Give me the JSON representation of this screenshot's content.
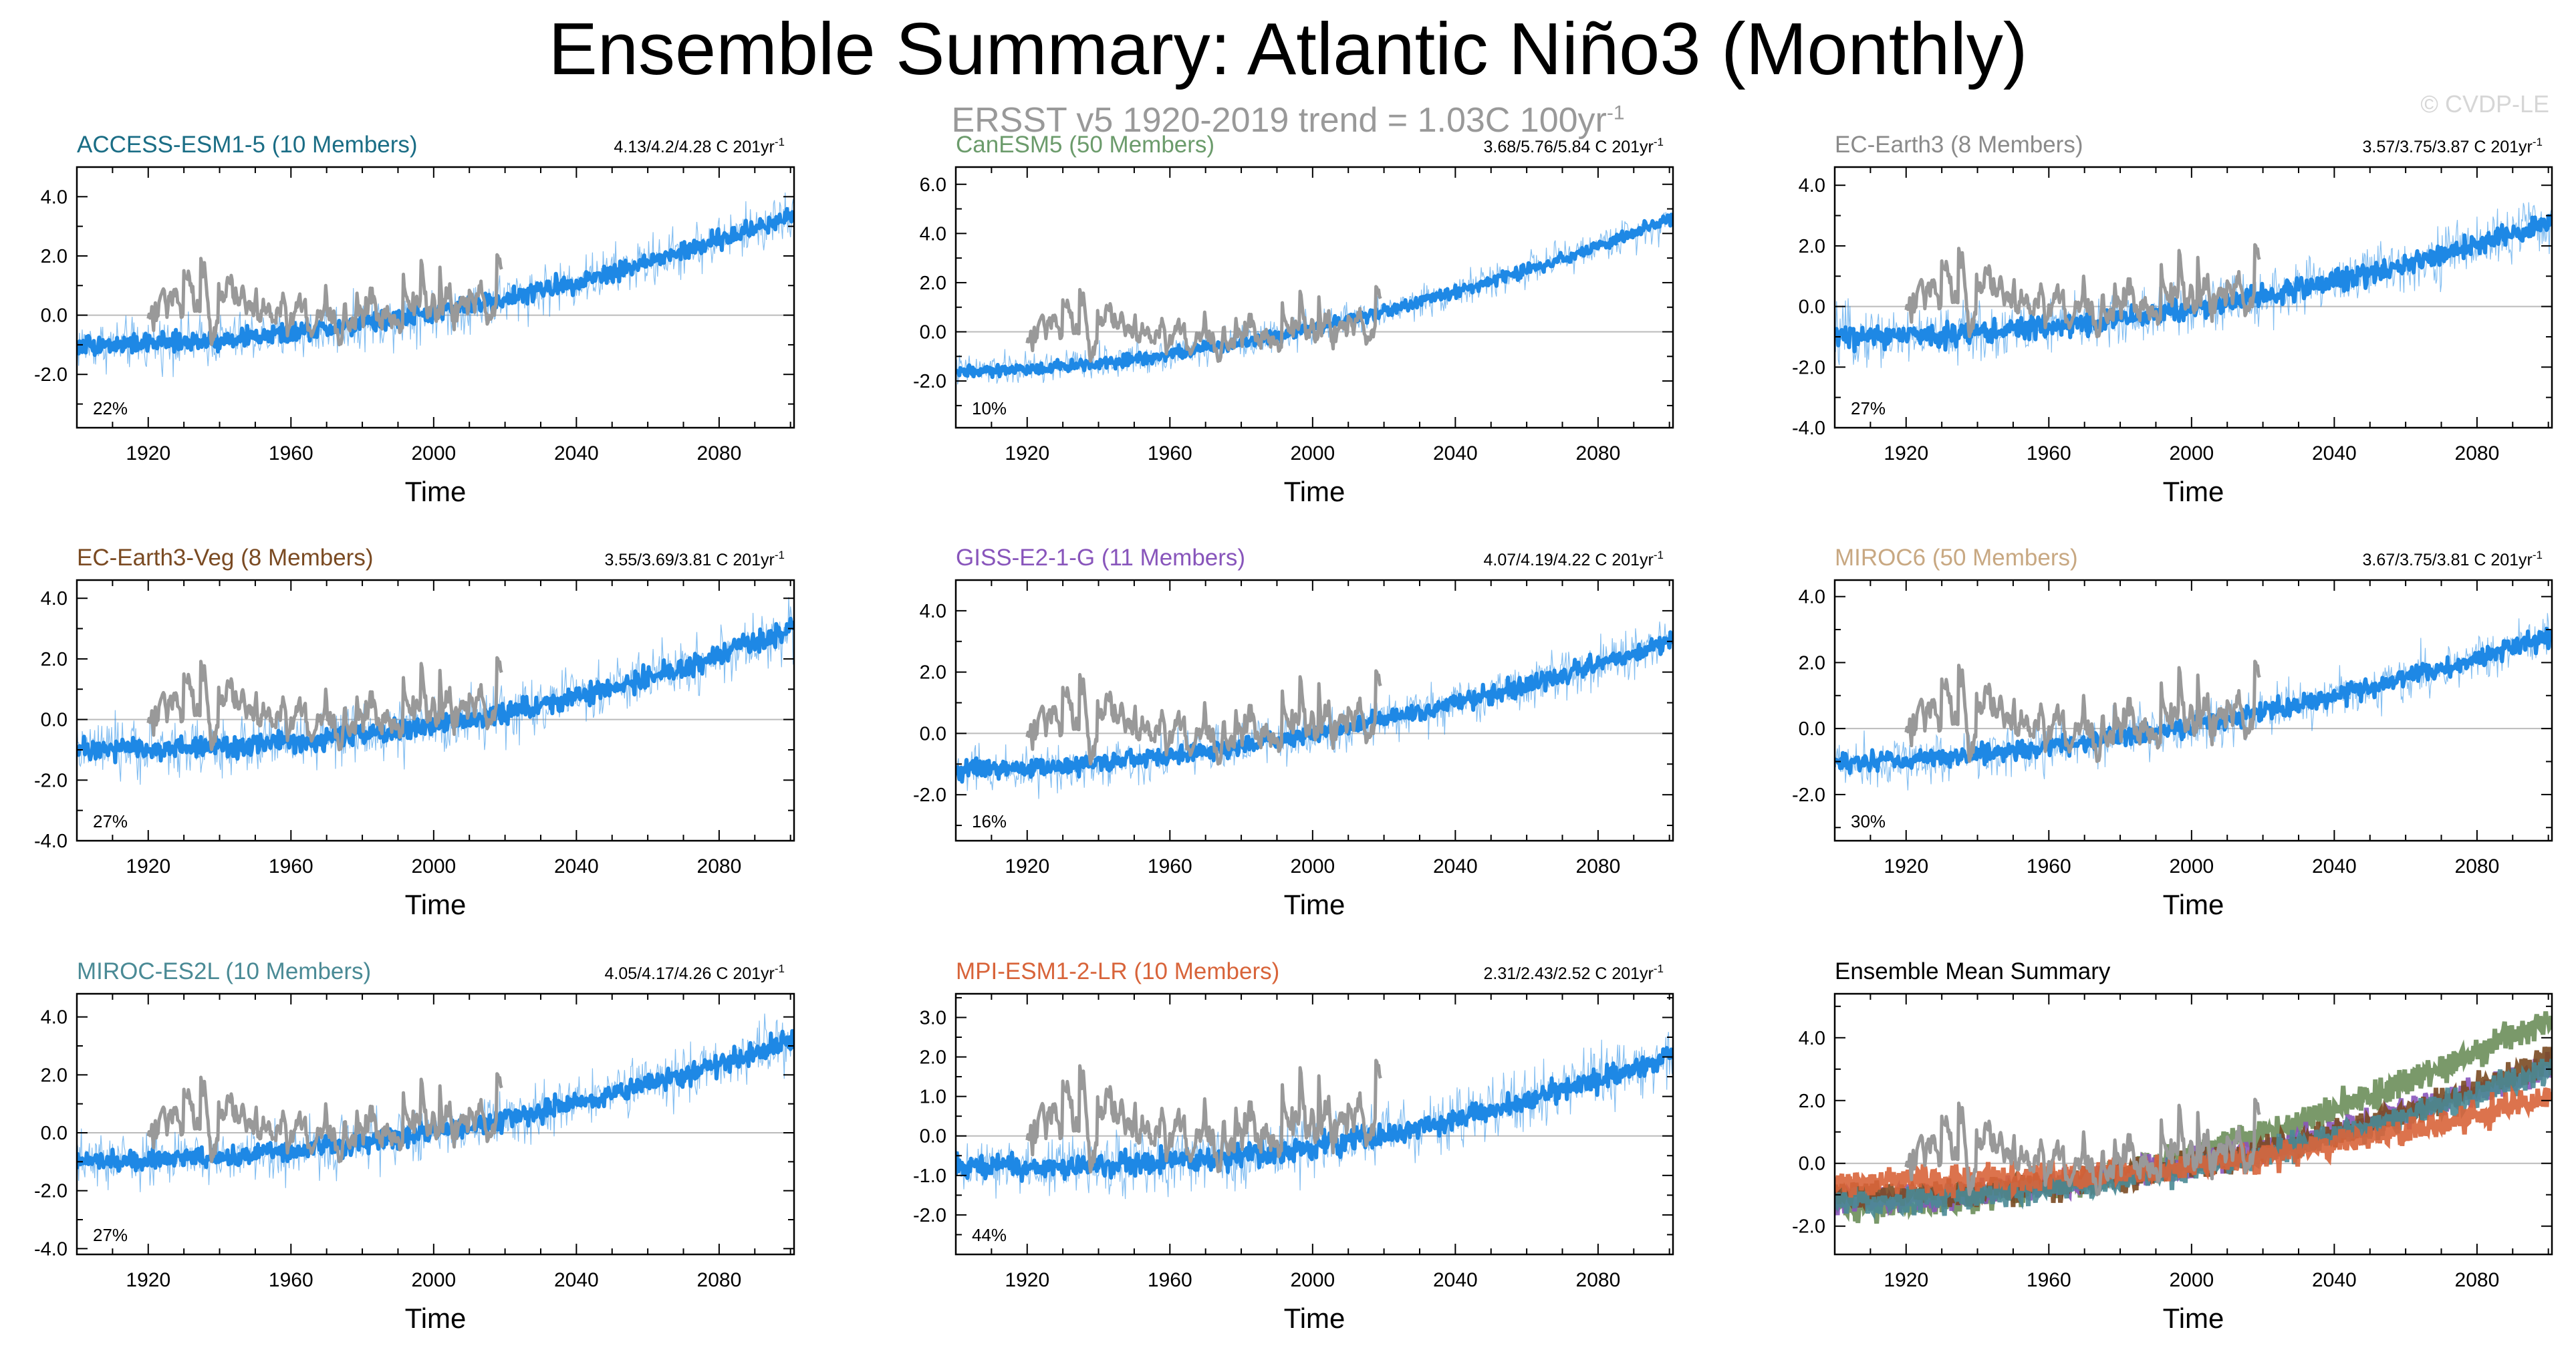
{
  "title": "Ensemble Summary: Atlantic Niño3 (Monthly)",
  "subtitle": {
    "text": "ERSST v5 1920-2019 trend = 1.03C 100yr",
    "sup": "-1"
  },
  "watermark": "© CVDP-LE",
  "colors": {
    "model": "#1e88e5",
    "obs": "#999999",
    "zero_line": "#bbbbbb"
  },
  "chart_data": [
    {
      "type": "line",
      "title": "ACCESS-ESM1-5 (10 Members)",
      "title_color": "#1a6d85",
      "trend": "4.13/4.2/4.28 C 201yr",
      "percent": "22%",
      "xlabel": "Time",
      "xlim": [
        1900,
        2101
      ],
      "xticks": [
        1920,
        1960,
        2000,
        2040,
        2080
      ],
      "ylim": [
        -3.8,
        5.0
      ],
      "yticks": [
        -2.0,
        0.0,
        2.0,
        4.0
      ],
      "obs": {
        "start": 1920,
        "end": 2019,
        "base": 0.0,
        "amp": 1.3
      },
      "model": {
        "start": -1.0,
        "end": 3.4,
        "curve": 2.0,
        "spread": 0.9
      }
    },
    {
      "type": "line",
      "title": "CanESM5 (50 Members)",
      "title_color": "#6b9b6b",
      "trend": "3.68/5.76/5.84 C 201yr",
      "percent": "10%",
      "xlabel": "Time",
      "xlim": [
        1900,
        2101
      ],
      "xticks": [
        1920,
        1960,
        2000,
        2040,
        2080
      ],
      "ylim": [
        -3.9,
        6.7
      ],
      "yticks": [
        -2.0,
        0.0,
        2.0,
        4.0,
        6.0
      ],
      "obs": {
        "start": 1920,
        "end": 2019,
        "base": -0.2,
        "amp": 1.3
      },
      "model": {
        "start": -1.6,
        "end": 4.6,
        "curve": 1.8,
        "spread": 0.7
      }
    },
    {
      "type": "line",
      "title": "EC-Earth3 (8 Members)",
      "title_color": "#8a8a8a",
      "trend": "3.57/3.75/3.87 C 201yr",
      "percent": "27%",
      "xlabel": "Time",
      "xlim": [
        1900,
        2101
      ],
      "xticks": [
        1920,
        1960,
        2000,
        2040,
        2080
      ],
      "ylim": [
        -4.0,
        4.6
      ],
      "yticks": [
        -4.0,
        -2.0,
        0.0,
        2.0,
        4.0
      ],
      "obs": {
        "start": 1920,
        "end": 2019,
        "base": 0.0,
        "amp": 1.3
      },
      "model": {
        "start": -1.0,
        "end": 2.8,
        "curve": 2.0,
        "spread": 1.0
      }
    },
    {
      "type": "line",
      "title": "EC-Earth3-Veg (8 Members)",
      "title_color": "#7a4a22",
      "trend": "3.55/3.69/3.81 C 201yr",
      "percent": "27%",
      "xlabel": "Time",
      "xlim": [
        1900,
        2101
      ],
      "xticks": [
        1920,
        1960,
        2000,
        2040,
        2080
      ],
      "ylim": [
        -4.0,
        4.6
      ],
      "yticks": [
        -4.0,
        -2.0,
        0.0,
        2.0,
        4.0
      ],
      "obs": {
        "start": 1920,
        "end": 2019,
        "base": 0.0,
        "amp": 1.3
      },
      "model": {
        "start": -1.0,
        "end": 3.0,
        "curve": 2.3,
        "spread": 1.0
      }
    },
    {
      "type": "line",
      "title": "GISS-E2-1-G (11 Members)",
      "title_color": "#8855bb",
      "trend": "4.07/4.19/4.22 C 201yr",
      "percent": "16%",
      "xlabel": "Time",
      "xlim": [
        1900,
        2101
      ],
      "xticks": [
        1920,
        1960,
        2000,
        2040,
        2080
      ],
      "ylim": [
        -3.5,
        5.0
      ],
      "yticks": [
        -2.0,
        0.0,
        2.0,
        4.0
      ],
      "obs": {
        "start": 1920,
        "end": 2019,
        "base": 0.0,
        "amp": 1.3
      },
      "model": {
        "start": -1.2,
        "end": 3.0,
        "curve": 1.8,
        "spread": 0.8
      }
    },
    {
      "type": "line",
      "title": "MIROC6 (50 Members)",
      "title_color": "#c8a882",
      "trend": "3.67/3.75/3.81 C 201yr",
      "percent": "30%",
      "xlabel": "Time",
      "xlim": [
        1900,
        2101
      ],
      "xticks": [
        1920,
        1960,
        2000,
        2040,
        2080
      ],
      "ylim": [
        -3.4,
        4.5
      ],
      "yticks": [
        -2.0,
        0.0,
        2.0,
        4.0
      ],
      "obs": {
        "start": 1920,
        "end": 2019,
        "base": 0.0,
        "amp": 1.3
      },
      "model": {
        "start": -1.0,
        "end": 2.8,
        "curve": 1.8,
        "spread": 0.8
      }
    },
    {
      "type": "line",
      "title": "MIROC-ES2L (10 Members)",
      "title_color": "#4a8a95",
      "trend": "4.05/4.17/4.26 C 201yr",
      "percent": "27%",
      "xlabel": "Time",
      "xlim": [
        1900,
        2101
      ],
      "xticks": [
        1920,
        1960,
        2000,
        2040,
        2080
      ],
      "ylim": [
        -4.2,
        4.8
      ],
      "yticks": [
        -4.0,
        -2.0,
        0.0,
        2.0,
        4.0
      ],
      "obs": {
        "start": 1920,
        "end": 2019,
        "base": 0.0,
        "amp": 1.3
      },
      "model": {
        "start": -1.0,
        "end": 3.2,
        "curve": 2.0,
        "spread": 1.0
      }
    },
    {
      "type": "line",
      "title": "MPI-ESM1-2-LR (10 Members)",
      "title_color": "#d8643a",
      "trend": "2.31/2.43/2.52 C 201yr",
      "percent": "44%",
      "xlabel": "Time",
      "xlim": [
        1900,
        2101
      ],
      "xticks": [
        1920,
        1960,
        2000,
        2040,
        2080
      ],
      "ylim": [
        -3.0,
        3.6
      ],
      "yticks": [
        -2.0,
        -1.0,
        0.0,
        1.0,
        2.0,
        3.0
      ],
      "obs": {
        "start": 1920,
        "end": 2019,
        "base": 0.0,
        "amp": 1.2
      },
      "model": {
        "start": -0.8,
        "end": 2.1,
        "curve": 2.4,
        "spread": 0.8
      }
    },
    {
      "type": "line",
      "title": "Ensemble Mean Summary",
      "title_color": "#000000",
      "trend": "",
      "percent": "",
      "xlabel": "Time",
      "xlim": [
        1900,
        2101
      ],
      "xticks": [
        1920,
        1960,
        2000,
        2040,
        2080
      ],
      "ylim": [
        -2.9,
        5.4
      ],
      "yticks": [
        -2.0,
        0.0,
        2.0,
        4.0
      ],
      "obs": {
        "start": 1920,
        "end": 2019,
        "base": 0.0,
        "amp": 1.3
      },
      "series": [
        {
          "name": "CanESM5",
          "color": "#6b8e5a",
          "start": -1.4,
          "end": 4.6,
          "curve": 1.8
        },
        {
          "name": "GISS-E2-1-G",
          "color": "#8855bb",
          "start": -1.2,
          "end": 3.0,
          "curve": 1.8
        },
        {
          "name": "EC-Earth3-Veg",
          "color": "#7a4a22",
          "start": -1.0,
          "end": 3.3,
          "curve": 2.2
        },
        {
          "name": "MIROC-ES2L",
          "color": "#4a8a95",
          "start": -1.2,
          "end": 3.0,
          "curve": 2.0
        },
        {
          "name": "MPI-ESM1-2-LR",
          "color": "#d8643a",
          "start": -0.6,
          "end": 2.2,
          "curve": 2.4
        }
      ]
    }
  ]
}
